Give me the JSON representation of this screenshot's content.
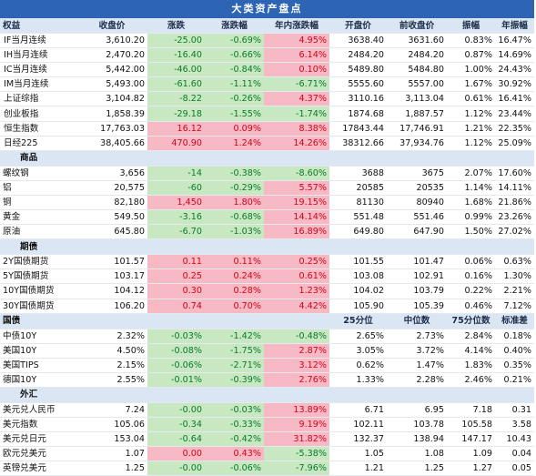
{
  "title": "大类资产盘点",
  "header": [
    "权益",
    "收盘价",
    "涨跌",
    "涨跌幅",
    "年内涨跌幅",
    "开盘价",
    "前收盘价",
    "振幅",
    "年振幅"
  ],
  "equity": [
    {
      "name": "IF当月连续",
      "close": "3,610.20",
      "chg": "-25.00",
      "pct": "-0.69%",
      "ytd": "4.95%",
      "open": "3638.40",
      "prev": "3631.60",
      "amp": "0.83%",
      "yamp": "16.47%",
      "d": [
        "",
        "dn",
        "dn",
        "up"
      ]
    },
    {
      "name": "IH当月连续",
      "close": "2,470.20",
      "chg": "-16.40",
      "pct": "-0.66%",
      "ytd": "6.14%",
      "open": "2484.20",
      "prev": "2484.20",
      "amp": "0.87%",
      "yamp": "14.69%",
      "d": [
        "",
        "dn",
        "dn",
        "up"
      ]
    },
    {
      "name": "IC当月连续",
      "close": "5,442.00",
      "chg": "-46.00",
      "pct": "-0.84%",
      "ytd": "0.10%",
      "open": "5489.80",
      "prev": "5484.80",
      "amp": "1.00%",
      "yamp": "24.43%",
      "d": [
        "",
        "dn",
        "dn",
        "up"
      ]
    },
    {
      "name": "IM当月连续",
      "close": "5,493.00",
      "chg": "-61.60",
      "pct": "-1.11%",
      "ytd": "-6.71%",
      "open": "5555.60",
      "prev": "5557.00",
      "amp": "1.67%",
      "yamp": "30.92%",
      "d": [
        "",
        "dn",
        "dn",
        "dn"
      ]
    },
    {
      "name": "上证综指",
      "close": "3,104.82",
      "chg": "-8.22",
      "pct": "-0.26%",
      "ytd": "4.37%",
      "open": "3110.16",
      "prev": "3,113.04",
      "amp": "0.61%",
      "yamp": "16.41%",
      "d": [
        "",
        "dn",
        "dn",
        "up"
      ]
    },
    {
      "name": "创业板指",
      "close": "1,858.39",
      "chg": "-29.18",
      "pct": "-1.55%",
      "ytd": "-1.74%",
      "open": "1874.68",
      "prev": "1,887.57",
      "amp": "1.12%",
      "yamp": "23.44%",
      "d": [
        "",
        "dn",
        "dn",
        "dn"
      ]
    },
    {
      "name": "恒生指数",
      "close": "17,763.03",
      "chg": "16.12",
      "pct": "0.09%",
      "ytd": "8.38%",
      "open": "17843.44",
      "prev": "17,746.91",
      "amp": "1.21%",
      "yamp": "22.35%",
      "d": [
        "",
        "up",
        "up",
        "up"
      ]
    },
    {
      "name": "日经225",
      "close": "38,405.66",
      "chg": "470.90",
      "pct": "1.24%",
      "ytd": "14.26%",
      "open": "38312.66",
      "prev": "37,934.76",
      "amp": "1.12%",
      "yamp": "25.09%",
      "d": [
        "",
        "up",
        "up",
        "up"
      ]
    }
  ],
  "commodity_label": "商品",
  "commodity": [
    {
      "name": "螺纹钢",
      "close": "3,656",
      "chg": "-14",
      "pct": "-0.38%",
      "ytd": "-8.60%",
      "open": "3688",
      "prev": "3675",
      "amp": "2.07%",
      "yamp": "17.60%",
      "d": [
        "",
        "dn",
        "dn",
        "dn"
      ]
    },
    {
      "name": "铝",
      "close": "20,575",
      "chg": "-60",
      "pct": "-0.29%",
      "ytd": "5.57%",
      "open": "20585",
      "prev": "20535",
      "amp": "1.14%",
      "yamp": "14.11%",
      "d": [
        "",
        "dn",
        "dn",
        "up"
      ]
    },
    {
      "name": "铜",
      "close": "82,180",
      "chg": "1,450",
      "pct": "1.80%",
      "ytd": "19.15%",
      "open": "81130",
      "prev": "80940",
      "amp": "1.68%",
      "yamp": "21.86%",
      "d": [
        "",
        "up",
        "up",
        "up"
      ]
    },
    {
      "name": "黄金",
      "close": "549.50",
      "chg": "-3.16",
      "pct": "-0.68%",
      "ytd": "14.14%",
      "open": "551.48",
      "prev": "551.46",
      "amp": "0.99%",
      "yamp": "23.26%",
      "d": [
        "",
        "dn",
        "dn",
        "up"
      ]
    },
    {
      "name": "原油",
      "close": "645.80",
      "chg": "-6.70",
      "pct": "-1.03%",
      "ytd": "16.89%",
      "open": "649.80",
      "prev": "647.90",
      "amp": "1.50%",
      "yamp": "27.02%",
      "d": [
        "",
        "dn",
        "dn",
        "up"
      ]
    }
  ],
  "futures_label": "期债",
  "futures": [
    {
      "name": "2Y国债期货",
      "close": "101.57",
      "chg": "0.11",
      "pct": "0.11%",
      "ytd": "0.25%",
      "open": "101.55",
      "prev": "101.47",
      "amp": "0.06%",
      "yamp": "0.63%",
      "d": [
        "",
        "up",
        "up",
        "up"
      ]
    },
    {
      "name": "5Y国债期货",
      "close": "103.17",
      "chg": "0.25",
      "pct": "0.24%",
      "ytd": "0.61%",
      "open": "103.08",
      "prev": "102.91",
      "amp": "0.16%",
      "yamp": "1.30%",
      "d": [
        "",
        "up",
        "up",
        "up"
      ]
    },
    {
      "name": "10Y国债期货",
      "close": "104.12",
      "chg": "0.30",
      "pct": "0.28%",
      "ytd": "1.23%",
      "open": "104.02",
      "prev": "103.79",
      "amp": "0.22%",
      "yamp": "2.21%",
      "d": [
        "",
        "up",
        "up",
        "up"
      ]
    },
    {
      "name": "30Y国债期货",
      "close": "106.20",
      "chg": "0.74",
      "pct": "0.70%",
      "ytd": "4.42%",
      "open": "105.90",
      "prev": "105.39",
      "amp": "0.46%",
      "yamp": "7.12%",
      "d": [
        "",
        "up",
        "up",
        "up"
      ]
    }
  ],
  "bond_header": [
    "国债",
    "",
    "",
    "",
    "",
    "25分位",
    "中位数",
    "75分位数",
    "标准差"
  ],
  "bonds": [
    {
      "name": "中债10Y",
      "close": "2.32%",
      "chg": "-0.03%",
      "pct": "-1.42%",
      "ytd": "-0.48%",
      "open": "2.65%",
      "prev": "2.73%",
      "amp": "2.84%",
      "yamp": "0.18%",
      "d": [
        "",
        "dn",
        "dn",
        "dn"
      ]
    },
    {
      "name": "美国10Y",
      "close": "4.50%",
      "chg": "-0.08%",
      "pct": "-1.75%",
      "ytd": "2.87%",
      "open": "3.05%",
      "prev": "3.72%",
      "amp": "4.14%",
      "yamp": "0.40%",
      "d": [
        "",
        "dn",
        "dn",
        "up"
      ]
    },
    {
      "name": "美国TIPS",
      "close": "2.15%",
      "chg": "-0.06%",
      "pct": "-2.71%",
      "ytd": "3.12%",
      "open": "0.62%",
      "prev": "1.47%",
      "amp": "1.83%",
      "yamp": "0.35%",
      "d": [
        "",
        "dn",
        "dn",
        "up"
      ]
    },
    {
      "name": "德国10Y",
      "close": "2.55%",
      "chg": "-0.01%",
      "pct": "-0.39%",
      "ytd": "2.76%",
      "open": "1.33%",
      "prev": "2.28%",
      "amp": "2.46%",
      "yamp": "0.21%",
      "d": [
        "",
        "dn",
        "dn",
        "up"
      ]
    }
  ],
  "fx_label": "外汇",
  "fx": [
    {
      "name": "美元兑人民币",
      "close": "7.24",
      "chg": "-0.00",
      "pct": "-0.03%",
      "ytd": "13.89%",
      "open": "6.71",
      "prev": "6.95",
      "amp": "7.18",
      "yamp": "0.31",
      "d": [
        "",
        "dn",
        "dn",
        "up"
      ]
    },
    {
      "name": "美元指数",
      "close": "105.06",
      "chg": "-0.34",
      "pct": "-0.33%",
      "ytd": "9.19%",
      "open": "102.11",
      "prev": "103.78",
      "amp": "105.58",
      "yamp": "3.58",
      "d": [
        "",
        "dn",
        "dn",
        "up"
      ]
    },
    {
      "name": "美元兑日元",
      "close": "153.04",
      "chg": "-0.64",
      "pct": "-0.42%",
      "ytd": "31.82%",
      "open": "132.37",
      "prev": "138.94",
      "amp": "147.17",
      "yamp": "10.43",
      "d": [
        "",
        "dn",
        "dn",
        "up"
      ]
    },
    {
      "name": "欧元兑美元",
      "close": "1.07",
      "chg": "0.00",
      "pct": "0.43%",
      "ytd": "-5.38%",
      "open": "1.05",
      "prev": "1.08",
      "amp": "1.09",
      "yamp": "0.04",
      "d": [
        "",
        "up",
        "up",
        "dn"
      ]
    },
    {
      "name": "英镑兑美元",
      "close": "1.25",
      "chg": "-0.00",
      "pct": "-0.06%",
      "ytd": "-7.96%",
      "open": "1.21",
      "prev": "1.25",
      "amp": "1.27",
      "yamp": "0.05",
      "d": [
        "",
        "dn",
        "dn",
        "dn"
      ]
    }
  ]
}
